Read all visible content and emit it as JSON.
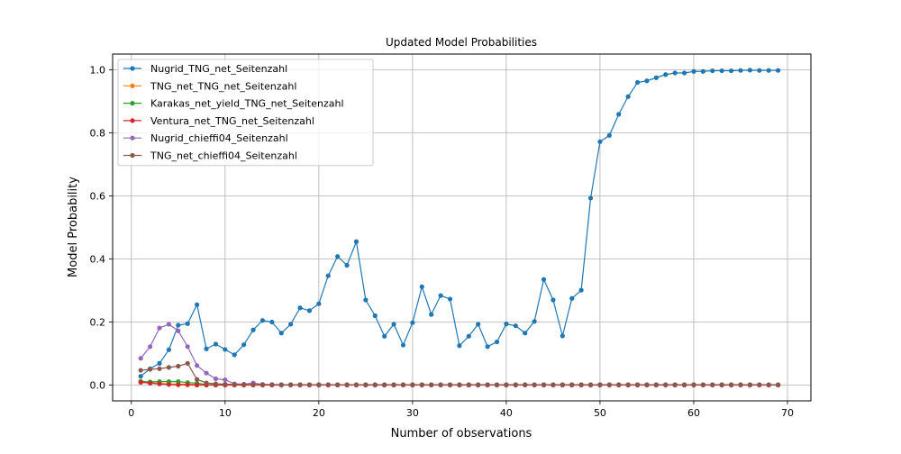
{
  "chart_data": {
    "type": "line",
    "title": "Updated Model Probabilities",
    "xlabel": "Number of observations",
    "ylabel": "Model Probability",
    "xlim": [
      -2,
      72.5
    ],
    "ylim": [
      -0.05,
      1.05
    ],
    "xticks": [
      0,
      10,
      20,
      30,
      40,
      50,
      60,
      70
    ],
    "yticks": [
      0.0,
      0.2,
      0.4,
      0.6,
      0.8,
      1.0
    ],
    "grid": true,
    "legend_position": "top-left",
    "x": [
      1,
      2,
      3,
      4,
      5,
      6,
      7,
      8,
      9,
      10,
      11,
      12,
      13,
      14,
      15,
      16,
      17,
      18,
      19,
      20,
      21,
      22,
      23,
      24,
      25,
      26,
      27,
      28,
      29,
      30,
      31,
      32,
      33,
      34,
      35,
      36,
      37,
      38,
      39,
      40,
      41,
      42,
      43,
      44,
      45,
      46,
      47,
      48,
      49,
      50,
      51,
      52,
      53,
      54,
      55,
      56,
      57,
      58,
      59,
      60,
      61,
      62,
      63,
      64,
      65,
      66,
      67,
      68,
      69
    ],
    "series": [
      {
        "name": "Nugrid_TNG_net_Seitenzahl",
        "color": "#1f77b4",
        "values": [
          0.028,
          0.052,
          0.069,
          0.112,
          0.19,
          0.195,
          0.255,
          0.115,
          0.13,
          0.113,
          0.096,
          0.128,
          0.175,
          0.205,
          0.2,
          0.165,
          0.193,
          0.245,
          0.236,
          0.258,
          0.347,
          0.408,
          0.38,
          0.455,
          0.27,
          0.22,
          0.155,
          0.193,
          0.127,
          0.198,
          0.312,
          0.224,
          0.284,
          0.273,
          0.125,
          0.155,
          0.193,
          0.122,
          0.137,
          0.194,
          0.188,
          0.165,
          0.202,
          0.335,
          0.27,
          0.156,
          0.275,
          0.301,
          0.593,
          0.772,
          0.792,
          0.859,
          0.915,
          0.96,
          0.965,
          0.975,
          0.985,
          0.99,
          0.99,
          0.995,
          0.995,
          0.997,
          0.997,
          0.997,
          0.998,
          0.999,
          0.998,
          0.998,
          0.998
        ]
      },
      {
        "name": "TNG_net_TNG_net_Seitenzahl",
        "color": "#ff7f0e",
        "values": [
          0.01,
          0.008,
          0.005,
          0.004,
          0.003,
          0.003,
          0.002,
          0.001,
          0.001,
          0.001,
          0.001,
          0.001,
          0.001,
          0.001,
          0.001,
          0.001,
          0.001,
          0.001,
          0.001,
          0.001,
          0.001,
          0.001,
          0.001,
          0.001,
          0.001,
          0.001,
          0.001,
          0.001,
          0.001,
          0.001,
          0.001,
          0.001,
          0.001,
          0.001,
          0.001,
          0.001,
          0.001,
          0.001,
          0.001,
          0.001,
          0.001,
          0.001,
          0.001,
          0.001,
          0.001,
          0.001,
          0.001,
          0.001,
          0.001,
          0.001,
          0.001,
          0.001,
          0.001,
          0.001,
          0.001,
          0.001,
          0.001,
          0.001,
          0.001,
          0.001,
          0.001,
          0.001,
          0.001,
          0.001,
          0.001,
          0.001,
          0.001,
          0.001,
          0.001
        ]
      },
      {
        "name": "Karakas_net_yield_TNG_net_Seitenzahl",
        "color": "#2ca02c",
        "values": [
          0.012,
          0.01,
          0.011,
          0.011,
          0.011,
          0.008,
          0.006,
          0.002,
          0.001,
          0.001,
          0.001,
          0.001,
          0.001,
          0.001,
          0.001,
          0.001,
          0.001,
          0.001,
          0.001,
          0.001,
          0.001,
          0.001,
          0.001,
          0.001,
          0.001,
          0.001,
          0.001,
          0.001,
          0.001,
          0.001,
          0.001,
          0.001,
          0.001,
          0.001,
          0.001,
          0.001,
          0.001,
          0.001,
          0.001,
          0.001,
          0.001,
          0.001,
          0.001,
          0.001,
          0.001,
          0.001,
          0.001,
          0.001,
          0.001,
          0.001,
          0.001,
          0.001,
          0.001,
          0.001,
          0.001,
          0.001,
          0.001,
          0.001,
          0.001,
          0.001,
          0.001,
          0.001,
          0.001,
          0.001,
          0.001,
          0.001,
          0.001,
          0.001,
          0.001
        ]
      },
      {
        "name": "Ventura_net_TNG_net_Seitenzahl",
        "color": "#d62728",
        "values": [
          0.009,
          0.006,
          0.004,
          0.002,
          0.001,
          0.001,
          0.0,
          0.0,
          0.0,
          0.0,
          0.0,
          0.0,
          0.0,
          0.0,
          0.0,
          0.0,
          0.0,
          0.0,
          0.0,
          0.0,
          0.0,
          0.0,
          0.0,
          0.0,
          0.0,
          0.0,
          0.0,
          0.0,
          0.0,
          0.0,
          0.0,
          0.0,
          0.0,
          0.0,
          0.0,
          0.0,
          0.0,
          0.0,
          0.0,
          0.0,
          0.0,
          0.0,
          0.0,
          0.0,
          0.0,
          0.0,
          0.0,
          0.0,
          0.0,
          0.0,
          0.0,
          0.0,
          0.0,
          0.0,
          0.0,
          0.0,
          0.0,
          0.0,
          0.0,
          0.0,
          0.0,
          0.0,
          0.0,
          0.0,
          0.0,
          0.0,
          0.0,
          0.0,
          0.0
        ]
      },
      {
        "name": "Nugrid_chieffi04_Seitenzahl",
        "color": "#9467bd",
        "values": [
          0.085,
          0.122,
          0.181,
          0.193,
          0.172,
          0.122,
          0.062,
          0.038,
          0.02,
          0.017,
          0.004,
          0.003,
          0.007,
          0.002,
          0.002,
          0.001,
          0.001,
          0.001,
          0.001,
          0.001,
          0.001,
          0.001,
          0.001,
          0.001,
          0.001,
          0.001,
          0.001,
          0.001,
          0.001,
          0.001,
          0.001,
          0.001,
          0.001,
          0.001,
          0.001,
          0.001,
          0.001,
          0.001,
          0.001,
          0.001,
          0.001,
          0.001,
          0.001,
          0.001,
          0.001,
          0.001,
          0.001,
          0.001,
          0.001,
          0.001,
          0.001,
          0.001,
          0.001,
          0.001,
          0.001,
          0.001,
          0.001,
          0.001,
          0.001,
          0.001,
          0.001,
          0.001,
          0.001,
          0.001,
          0.001,
          0.001,
          0.001,
          0.001,
          0.001
        ]
      },
      {
        "name": "TNG_net_chieffi04_Seitenzahl",
        "color": "#8c564b",
        "values": [
          0.047,
          0.05,
          0.052,
          0.056,
          0.06,
          0.069,
          0.018,
          0.007,
          0.004,
          0.003,
          0.002,
          0.002,
          0.002,
          0.002,
          0.001,
          0.001,
          0.001,
          0.001,
          0.001,
          0.001,
          0.001,
          0.001,
          0.001,
          0.001,
          0.001,
          0.001,
          0.001,
          0.001,
          0.001,
          0.001,
          0.001,
          0.001,
          0.001,
          0.001,
          0.001,
          0.001,
          0.001,
          0.001,
          0.001,
          0.001,
          0.001,
          0.001,
          0.001,
          0.001,
          0.001,
          0.001,
          0.001,
          0.001,
          0.001,
          0.001,
          0.001,
          0.001,
          0.001,
          0.001,
          0.001,
          0.001,
          0.001,
          0.001,
          0.001,
          0.001,
          0.001,
          0.001,
          0.001,
          0.001,
          0.001,
          0.001,
          0.001,
          0.001,
          0.001
        ]
      }
    ]
  }
}
